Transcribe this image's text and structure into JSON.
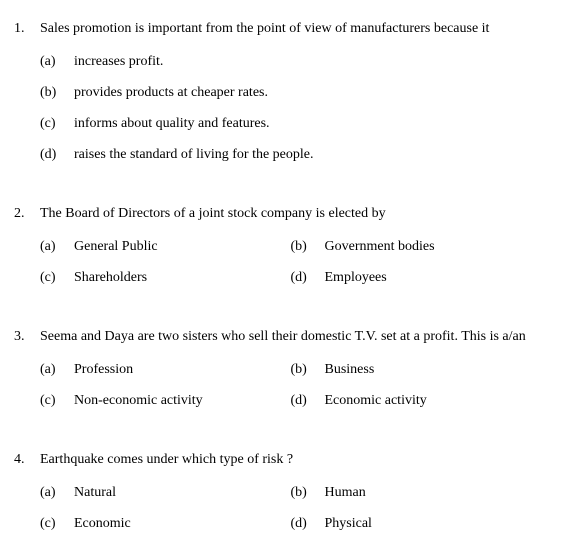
{
  "questions": [
    {
      "num": "1.",
      "stem": "Sales promotion is important from the point of view of manufacturers because it",
      "layout": "full",
      "options": [
        {
          "label": "(a)",
          "text": "increases profit."
        },
        {
          "label": "(b)",
          "text": "provides products at cheaper rates."
        },
        {
          "label": "(c)",
          "text": "informs about quality and features."
        },
        {
          "label": "(d)",
          "text": "raises the standard of living for the people."
        }
      ]
    },
    {
      "num": "2.",
      "stem": "The Board of Directors of a joint stock company is elected by",
      "layout": "half",
      "options": [
        {
          "label": "(a)",
          "text": "General Public"
        },
        {
          "label": "(b)",
          "text": "Government bodies"
        },
        {
          "label": "(c)",
          "text": "Shareholders"
        },
        {
          "label": "(d)",
          "text": "Employees"
        }
      ]
    },
    {
      "num": "3.",
      "stem": "Seema and Daya are two sisters who sell their domestic T.V. set at a profit. This is a/an",
      "layout": "half",
      "options": [
        {
          "label": "(a)",
          "text": "Profession"
        },
        {
          "label": "(b)",
          "text": "Business"
        },
        {
          "label": "(c)",
          "text": "Non-economic activity"
        },
        {
          "label": "(d)",
          "text": "Economic activity"
        }
      ]
    },
    {
      "num": "4.",
      "stem": "Earthquake comes under which type of risk ?",
      "layout": "half",
      "options": [
        {
          "label": "(a)",
          "text": "Natural"
        },
        {
          "label": "(b)",
          "text": "Human"
        },
        {
          "label": "(c)",
          "text": "Economic"
        },
        {
          "label": "(d)",
          "text": "Physical"
        }
      ]
    }
  ]
}
